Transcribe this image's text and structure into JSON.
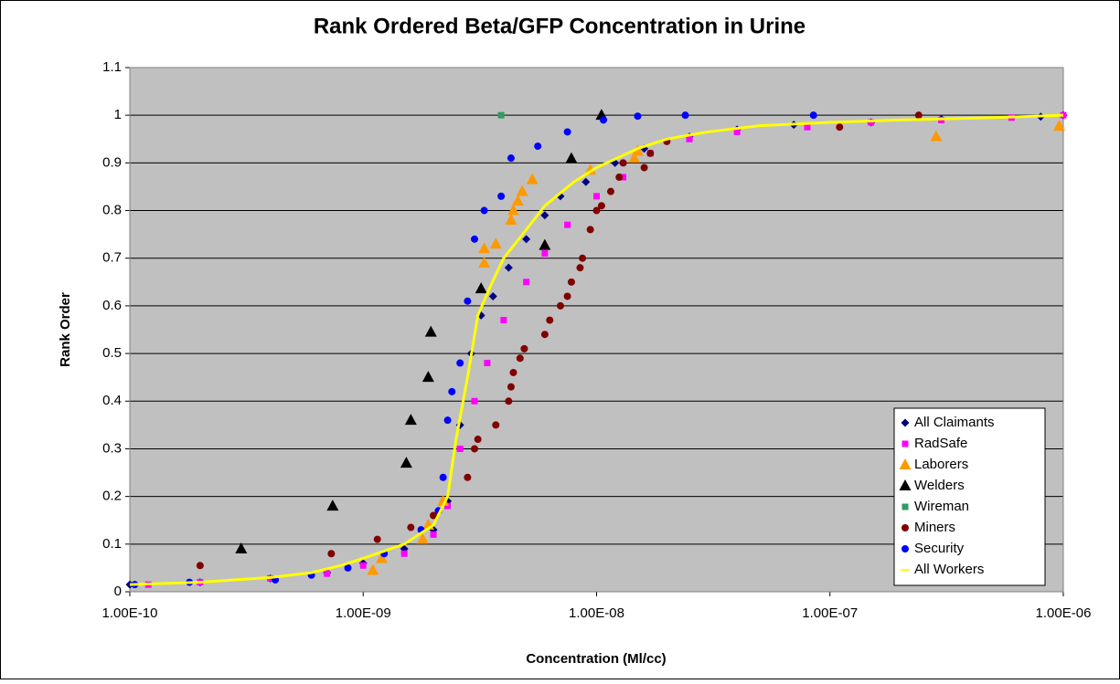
{
  "chart_data": {
    "type": "scatter",
    "title": "Rank Ordered Beta/GFP Concentration in Urine",
    "x_label": "Concentration (Ml/cc)",
    "y_label": "Rank Order",
    "xscale": "log",
    "xlim": [
      1e-10,
      1e-06
    ],
    "xticks": [
      {
        "value": 1e-10,
        "label": "1.00E-10"
      },
      {
        "value": 1e-09,
        "label": "1.00E-09"
      },
      {
        "value": 1e-08,
        "label": "1.00E-08"
      },
      {
        "value": 1e-07,
        "label": "1.00E-07"
      },
      {
        "value": 1e-06,
        "label": "1.00E-06"
      }
    ],
    "ylim": [
      0,
      1.1
    ],
    "yticks": [
      0,
      0.1,
      0.2,
      0.3,
      0.4,
      0.5,
      0.6,
      0.7,
      0.8,
      0.9,
      1,
      1.1
    ],
    "grid": true,
    "legend": "lower right",
    "series": [
      {
        "name": "All Claimants",
        "color": "#000080",
        "marker": "diamond",
        "x": [
          1e-10,
          2e-10,
          4e-10,
          7e-10,
          1e-09,
          1.5e-09,
          2e-09,
          2.3e-09,
          2.6e-09,
          2.9e-09,
          3.2e-09,
          3.6e-09,
          4.2e-09,
          5e-09,
          6e-09,
          7e-09,
          9e-09,
          1.2e-08,
          1.6e-08,
          2.5e-08,
          4e-08,
          7e-08,
          1.5e-07,
          3e-07,
          8e-07,
          1e-06
        ],
        "values": [
          0.015,
          0.02,
          0.028,
          0.04,
          0.06,
          0.09,
          0.13,
          0.19,
          0.35,
          0.5,
          0.58,
          0.62,
          0.68,
          0.74,
          0.79,
          0.83,
          0.86,
          0.9,
          0.93,
          0.955,
          0.97,
          0.98,
          0.985,
          0.992,
          0.997,
          1
        ]
      },
      {
        "name": "RadSafe",
        "color": "#ff00ff",
        "marker": "square",
        "x": [
          1.2e-10,
          2e-10,
          4e-10,
          7e-10,
          1e-09,
          1.5e-09,
          2e-09,
          2.3e-09,
          2.6e-09,
          3e-09,
          3.4e-09,
          4e-09,
          5e-09,
          6e-09,
          7.5e-09,
          1e-08,
          1.3e-08,
          1.7e-08,
          2.5e-08,
          4e-08,
          8e-08,
          1.5e-07,
          3e-07,
          6e-07,
          1e-06
        ],
        "values": [
          0.015,
          0.02,
          0.028,
          0.038,
          0.055,
          0.08,
          0.12,
          0.18,
          0.3,
          0.4,
          0.48,
          0.57,
          0.65,
          0.71,
          0.77,
          0.83,
          0.87,
          0.92,
          0.95,
          0.965,
          0.975,
          0.985,
          0.99,
          0.995,
          1
        ]
      },
      {
        "name": "Laborers",
        "color": "#ff9900",
        "marker": "triangle",
        "x": [
          1.1e-09,
          1.2e-09,
          1.8e-09,
          1.9e-09,
          2.2e-09,
          3.3e-09,
          3.3e-09,
          3.7e-09,
          4.3e-09,
          4.4e-09,
          4.6e-09,
          4.8e-09,
          5.3e-09,
          9.4e-09,
          1.45e-08,
          1.5e-08,
          2.85e-07,
          9.6e-07
        ],
        "values": [
          0.045,
          0.07,
          0.11,
          0.14,
          0.19,
          0.69,
          0.72,
          0.73,
          0.78,
          0.8,
          0.82,
          0.84,
          0.865,
          0.885,
          0.91,
          0.925,
          0.955,
          0.977
        ]
      },
      {
        "name": "Welders",
        "color": "#000000",
        "marker": "triangle",
        "x": [
          3e-10,
          7.4e-10,
          1.53e-09,
          1.6e-09,
          1.9e-09,
          1.95e-09,
          3.2e-09,
          6e-09,
          7.8e-09,
          1.05e-08
        ],
        "values": [
          0.09,
          0.18,
          0.27,
          0.36,
          0.45,
          0.545,
          0.636,
          0.727,
          0.909,
          1
        ]
      },
      {
        "name": "Wireman",
        "color": "#339966",
        "marker": "square",
        "x": [
          3.9e-09
        ],
        "values": [
          1
        ]
      },
      {
        "name": "Miners",
        "color": "#800000",
        "marker": "circle",
        "x": [
          2e-10,
          7.3e-10,
          1.15e-09,
          1.6e-09,
          2e-09,
          2.8e-09,
          3e-09,
          3.1e-09,
          3.7e-09,
          4.2e-09,
          4.3e-09,
          4.4e-09,
          4.7e-09,
          4.9e-09,
          6e-09,
          6.3e-09,
          7e-09,
          7.5e-09,
          7.8e-09,
          8.5e-09,
          8.7e-09,
          9.4e-09,
          1e-08,
          1.05e-08,
          1.15e-08,
          1.25e-08,
          1.3e-08,
          1.6e-08,
          1.7e-08,
          2e-08,
          1.1e-07,
          2.4e-07
        ],
        "values": [
          0.055,
          0.08,
          0.11,
          0.135,
          0.16,
          0.24,
          0.3,
          0.32,
          0.35,
          0.4,
          0.43,
          0.46,
          0.49,
          0.51,
          0.54,
          0.57,
          0.6,
          0.62,
          0.65,
          0.68,
          0.7,
          0.76,
          0.8,
          0.81,
          0.84,
          0.87,
          0.9,
          0.89,
          0.92,
          0.945,
          0.975,
          1
        ]
      },
      {
        "name": "Security",
        "color": "#0000ff",
        "marker": "circle",
        "x": [
          1.05e-10,
          1.8e-10,
          4.2e-10,
          6e-10,
          8.6e-10,
          1.23e-09,
          1.77e-09,
          2.1e-09,
          2.2e-09,
          2.3e-09,
          2.4e-09,
          2.6e-09,
          2.8e-09,
          3e-09,
          3.3e-09,
          3.9e-09,
          4.3e-09,
          5.6e-09,
          7.5e-09,
          1.07e-08,
          1.5e-08,
          2.4e-08,
          8.5e-08
        ],
        "values": [
          0.015,
          0.02,
          0.025,
          0.035,
          0.05,
          0.08,
          0.13,
          0.17,
          0.24,
          0.36,
          0.42,
          0.48,
          0.61,
          0.74,
          0.8,
          0.83,
          0.91,
          0.935,
          0.965,
          0.99,
          0.998,
          1,
          1
        ]
      },
      {
        "name": "All Workers",
        "color": "#ffff00",
        "marker": "line",
        "x": [
          1e-10,
          2e-10,
          4e-10,
          6e-10,
          8e-10,
          1e-09,
          1.5e-09,
          2e-09,
          2.3e-09,
          2.5e-09,
          2.8e-09,
          3.1e-09,
          3.5e-09,
          4e-09,
          5e-09,
          6e-09,
          8e-09,
          1e-08,
          1.5e-08,
          2e-08,
          3e-08,
          5e-08,
          1e-07,
          2e-07,
          5e-07,
          1e-06
        ],
        "values": [
          0.015,
          0.02,
          0.03,
          0.04,
          0.055,
          0.07,
          0.1,
          0.14,
          0.2,
          0.32,
          0.45,
          0.58,
          0.64,
          0.7,
          0.76,
          0.81,
          0.86,
          0.89,
          0.93,
          0.95,
          0.965,
          0.978,
          0.985,
          0.99,
          0.995,
          1
        ]
      }
    ]
  }
}
